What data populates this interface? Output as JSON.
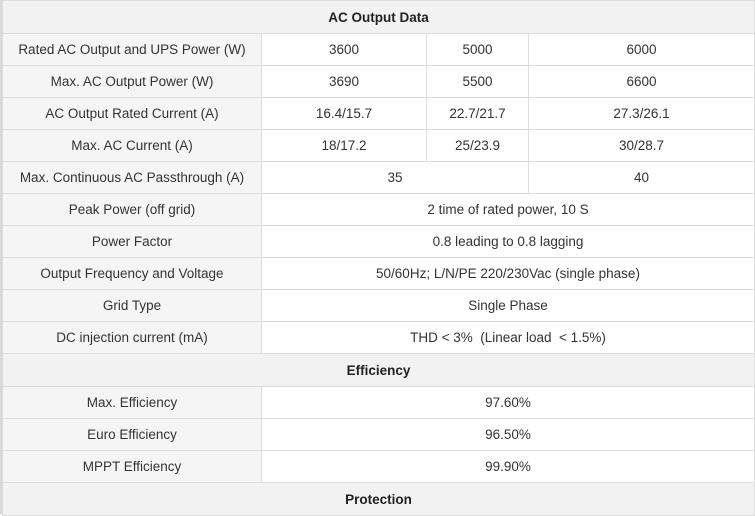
{
  "sections": {
    "ac_output": "AC Output Data",
    "efficiency": "Efficiency",
    "protection": "Protection"
  },
  "ac_output_rows": [
    {
      "label": "Rated AC Output and UPS Power (W)",
      "values": [
        "3600",
        "5000",
        "6000"
      ]
    },
    {
      "label": "Max. AC Output Power (W)",
      "values": [
        "3690",
        "5500",
        "6600"
      ]
    },
    {
      "label": "AC Output Rated Current (A)",
      "values": [
        "16.4/15.7",
        "22.7/21.7",
        "27.3/26.1"
      ]
    },
    {
      "label": "Max. AC Current (A)",
      "values": [
        "18/17.2",
        "25/23.9",
        "30/28.7"
      ]
    },
    {
      "label": "Max. Continuous AC Passthrough (A)",
      "values": [
        "35",
        "40"
      ]
    },
    {
      "label": "Peak Power (off grid)",
      "values": [
        "2 time of rated power, 10 S"
      ]
    },
    {
      "label": "Power Factor",
      "values": [
        "0.8 leading to 0.8 lagging"
      ]
    },
    {
      "label": "Output Frequency and Voltage",
      "values": [
        "50/60Hz; L/N/PE 220/230Vac (single phase)"
      ]
    },
    {
      "label": "Grid Type",
      "values": [
        "Single Phase"
      ]
    },
    {
      "label": "DC injection current (mA)",
      "values": [
        "THD < 3%  (Linear load  < 1.5%)"
      ]
    }
  ],
  "efficiency_rows": [
    {
      "label": "Max. Efficiency",
      "values": [
        "97.60%"
      ]
    },
    {
      "label": "Euro Efficiency",
      "values": [
        "96.50%"
      ]
    },
    {
      "label": "MPPT Efficiency",
      "values": [
        "99.90%"
      ]
    }
  ]
}
